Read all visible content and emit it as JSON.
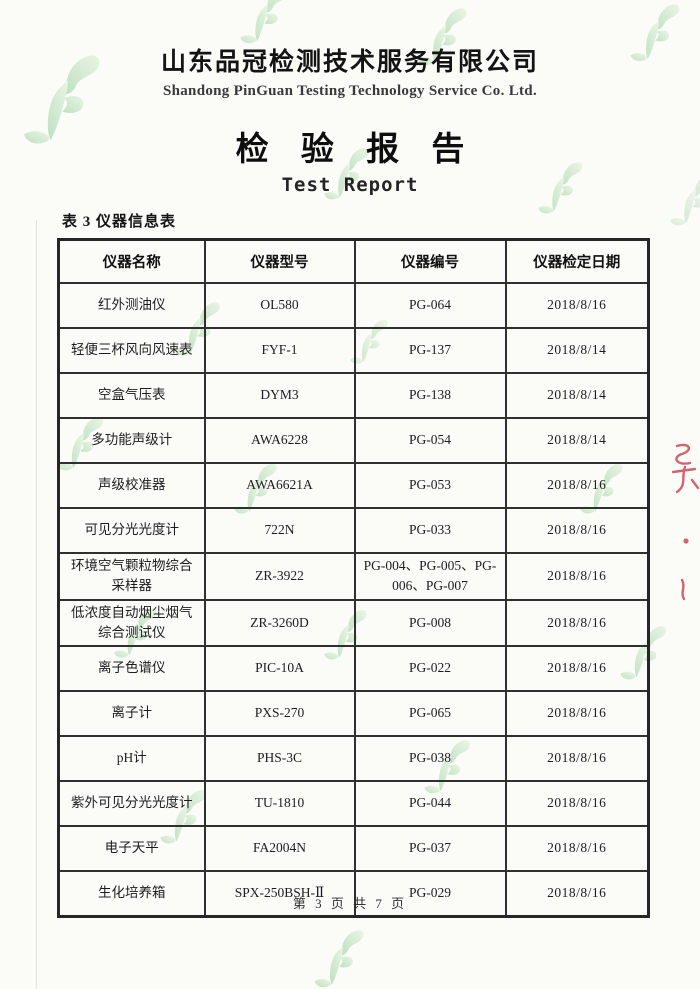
{
  "header": {
    "company_name_zh": "山东品冠检测技术服务有限公司",
    "company_name_en": "Shandong PinGuan Testing Technology Service Co. Ltd.",
    "report_title_zh": "检 验 报 告",
    "report_title_en": "Test Report"
  },
  "table": {
    "caption": "表 3 仪器信息表",
    "headers": [
      "仪器名称",
      "仪器型号",
      "仪器编号",
      "仪器检定日期"
    ],
    "rows": [
      [
        "红外测油仪",
        "OL580",
        "PG-064",
        "2018/8/16"
      ],
      [
        "轻便三杯风向风速表",
        "FYF-1",
        "PG-137",
        "2018/8/14"
      ],
      [
        "空盒气压表",
        "DYM3",
        "PG-138",
        "2018/8/14"
      ],
      [
        "多功能声级计",
        "AWA6228",
        "PG-054",
        "2018/8/14"
      ],
      [
        "声级校准器",
        "AWA6621A",
        "PG-053",
        "2018/8/16"
      ],
      [
        "可见分光光度计",
        "722N",
        "PG-033",
        "2018/8/16"
      ],
      [
        "环境空气颗粒物综合采样器",
        "ZR-3922",
        "PG-004、PG-005、PG-006、PG-007",
        "2018/8/16"
      ],
      [
        "低浓度自动烟尘烟气综合测试仪",
        "ZR-3260D",
        "PG-008",
        "2018/8/16"
      ],
      [
        "离子色谱仪",
        "PIC-10A",
        "PG-022",
        "2018/8/16"
      ],
      [
        "离子计",
        "PXS-270",
        "PG-065",
        "2018/8/16"
      ],
      [
        "pH计",
        "PHS-3C",
        "PG-038",
        "2018/8/16"
      ],
      [
        "紫外可见分光光度计",
        "TU-1810",
        "PG-044",
        "2018/8/16"
      ],
      [
        "电子天平",
        "FA2004N",
        "PG-037",
        "2018/8/16"
      ],
      [
        "生化培养箱",
        "SPX-250BSH-Ⅱ",
        "PG-029",
        "2018/8/16"
      ]
    ]
  },
  "footer": {
    "text": "第 3 页 共 7 页",
    "page_number": "3",
    "total_pages": "7"
  },
  "colors": {
    "watermark_green_dark": "#8ccd94",
    "watermark_green_light": "#ddf0d6",
    "red_ink": "#c4404e",
    "table_border": "#2e2e2e",
    "paper": "#fbfbf8"
  }
}
